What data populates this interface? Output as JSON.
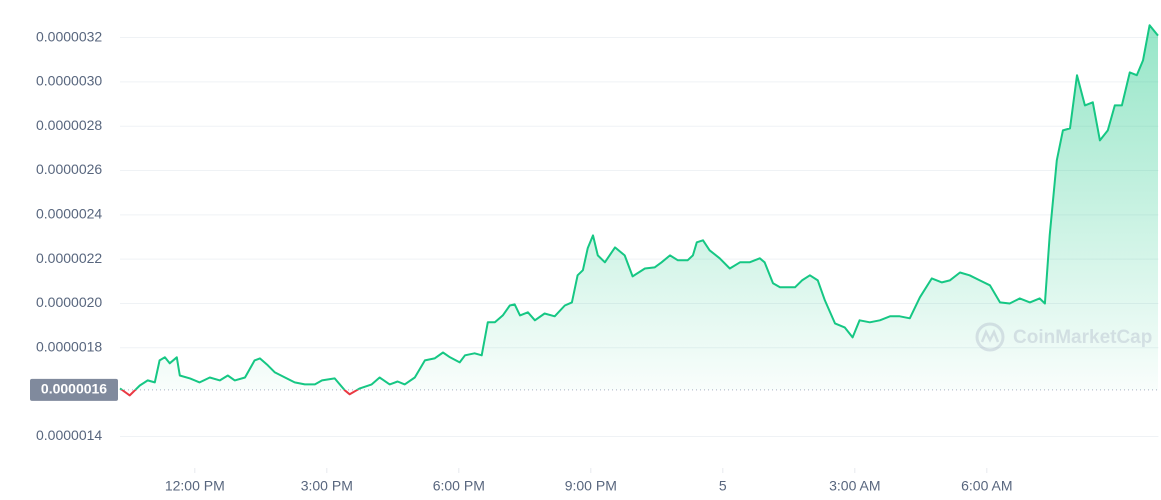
{
  "chart_data": {
    "type": "line",
    "watermark": "CoinMarketCap",
    "xlim": [
      10.3,
      33.9
    ],
    "xticks": [
      {
        "value": 12,
        "label": "12:00 PM"
      },
      {
        "value": 15,
        "label": "3:00 PM"
      },
      {
        "value": 18,
        "label": "6:00 PM"
      },
      {
        "value": 21,
        "label": "9:00 PM"
      },
      {
        "value": 24,
        "label": "5"
      },
      {
        "value": 27,
        "label": "3:00 AM"
      },
      {
        "value": 30,
        "label": "6:00 AM"
      }
    ],
    "ylim": [
      1.3e-06,
      3.3e-06
    ],
    "yticks": [
      {
        "value": 1.4e-06,
        "label": "0.0000014"
      },
      {
        "value": 1.8e-06,
        "label": "0.0000018"
      },
      {
        "value": 2e-06,
        "label": "0.0000020"
      },
      {
        "value": 2.2e-06,
        "label": "0.0000022"
      },
      {
        "value": 2.4e-06,
        "label": "0.0000024"
      },
      {
        "value": 2.6e-06,
        "label": "0.0000026"
      },
      {
        "value": 2.8e-06,
        "label": "0.0000028"
      },
      {
        "value": 3e-06,
        "label": "0.0000030"
      },
      {
        "value": 3.2e-06,
        "label": "0.0000032"
      }
    ],
    "reference_line": {
      "value": 1.61e-06,
      "label": "0.0000016"
    },
    "grid": true,
    "up_color": "#16c784",
    "down_color": "#ea3943",
    "x": [
      10.3,
      10.52,
      10.75,
      10.93,
      11.09,
      11.2,
      11.32,
      11.43,
      11.59,
      11.66,
      11.89,
      12.11,
      12.34,
      12.57,
      12.75,
      12.91,
      13.14,
      13.36,
      13.48,
      13.66,
      13.82,
      14.05,
      14.27,
      14.5,
      14.73,
      14.89,
      15.18,
      15.41,
      15.52,
      15.75,
      16.02,
      16.2,
      16.43,
      16.61,
      16.77,
      17.0,
      17.23,
      17.45,
      17.64,
      17.8,
      18.02,
      18.14,
      18.36,
      18.52,
      18.66,
      18.82,
      19.0,
      19.16,
      19.27,
      19.39,
      19.57,
      19.73,
      19.95,
      20.18,
      20.41,
      20.57,
      20.7,
      20.82,
      20.93,
      21.05,
      21.16,
      21.32,
      21.55,
      21.77,
      21.95,
      22.23,
      22.45,
      22.61,
      22.8,
      22.98,
      23.2,
      23.32,
      23.41,
      23.55,
      23.7,
      23.93,
      24.16,
      24.39,
      24.61,
      24.84,
      24.95,
      25.14,
      25.3,
      25.64,
      25.8,
      25.98,
      26.16,
      26.32,
      26.55,
      26.77,
      26.95,
      27.11,
      27.34,
      27.57,
      27.8,
      28.02,
      28.25,
      28.48,
      28.75,
      28.98,
      29.16,
      29.39,
      29.61,
      29.84,
      30.07,
      30.3,
      30.52,
      30.75,
      30.98,
      31.2,
      31.32,
      31.43,
      31.59,
      31.73,
      31.89,
      32.05,
      32.23,
      32.41,
      32.57,
      32.75,
      32.91,
      33.07,
      33.25,
      33.41,
      33.55,
      33.7,
      33.89
    ],
    "values": [
      1.617e-06,
      1.585e-06,
      1.63e-06,
      1.653e-06,
      1.644e-06,
      1.743e-06,
      1.757e-06,
      1.73e-06,
      1.757e-06,
      1.675e-06,
      1.662e-06,
      1.644e-06,
      1.666e-06,
      1.653e-06,
      1.675e-06,
      1.653e-06,
      1.666e-06,
      1.743e-06,
      1.752e-06,
      1.721e-06,
      1.689e-06,
      1.666e-06,
      1.644e-06,
      1.635e-06,
      1.635e-06,
      1.653e-06,
      1.662e-06,
      1.608e-06,
      1.59e-06,
      1.617e-06,
      1.635e-06,
      1.666e-06,
      1.635e-06,
      1.648e-06,
      1.635e-06,
      1.666e-06,
      1.743e-06,
      1.752e-06,
      1.779e-06,
      1.757e-06,
      1.734e-06,
      1.766e-06,
      1.775e-06,
      1.766e-06,
      1.915e-06,
      1.915e-06,
      1.946e-06,
      1.991e-06,
      1.996e-06,
      1.946e-06,
      1.96e-06,
      1.924e-06,
      1.955e-06,
      1.942e-06,
      1.991e-06,
      2.005e-06,
      2.127e-06,
      2.15e-06,
      2.249e-06,
      2.307e-06,
      2.217e-06,
      2.186e-06,
      2.253e-06,
      2.217e-06,
      2.122e-06,
      2.158e-06,
      2.163e-06,
      2.186e-06,
      2.217e-06,
      2.195e-06,
      2.195e-06,
      2.217e-06,
      2.276e-06,
      2.285e-06,
      2.24e-06,
      2.204e-06,
      2.158e-06,
      2.186e-06,
      2.186e-06,
      2.204e-06,
      2.186e-06,
      2.091e-06,
      2.073e-06,
      2.073e-06,
      2.104e-06,
      2.127e-06,
      2.104e-06,
      2.014e-06,
      1.91e-06,
      1.892e-06,
      1.847e-06,
      1.924e-06,
      1.915e-06,
      1.924e-06,
      1.942e-06,
      1.942e-06,
      1.933e-06,
      2.028e-06,
      2.113e-06,
      2.095e-06,
      2.104e-06,
      2.14e-06,
      2.127e-06,
      2.104e-06,
      2.082e-06,
      2.005e-06,
      2e-06,
      2.023e-06,
      2.005e-06,
      2.023e-06,
      2e-06,
      2.307e-06,
      2.646e-06,
      2.781e-06,
      2.79e-06,
      3.03e-06,
      2.894e-06,
      2.908e-06,
      2.736e-06,
      2.781e-06,
      2.894e-06,
      2.894e-06,
      3.043e-06,
      3.03e-06,
      3.097e-06,
      3.256e-06,
      3.209e-06
    ]
  }
}
